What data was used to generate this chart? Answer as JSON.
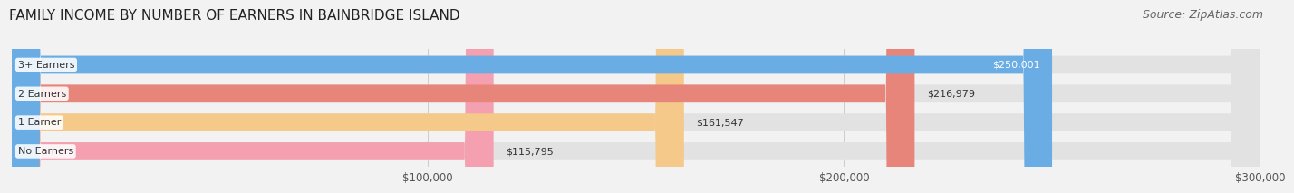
{
  "title": "FAMILY INCOME BY NUMBER OF EARNERS IN BAINBRIDGE ISLAND",
  "source": "Source: ZipAtlas.com",
  "categories": [
    "No Earners",
    "1 Earner",
    "2 Earners",
    "3+ Earners"
  ],
  "values": [
    115795,
    161547,
    216979,
    250001
  ],
  "bar_colors": [
    "#f4a0b0",
    "#f5c98a",
    "#e8857a",
    "#6aade4"
  ],
  "label_colors": [
    "#333333",
    "#333333",
    "#333333",
    "#ffffff"
  ],
  "value_labels": [
    "$115,795",
    "$161,547",
    "$216,979",
    "$250,001"
  ],
  "xlim": [
    0,
    300000
  ],
  "xticks": [
    100000,
    200000,
    300000
  ],
  "xtick_labels": [
    "$100,000",
    "$200,000",
    "$300,000"
  ],
  "background_color": "#f2f2f2",
  "bar_background": "#e2e2e2",
  "title_fontsize": 11,
  "source_fontsize": 9
}
